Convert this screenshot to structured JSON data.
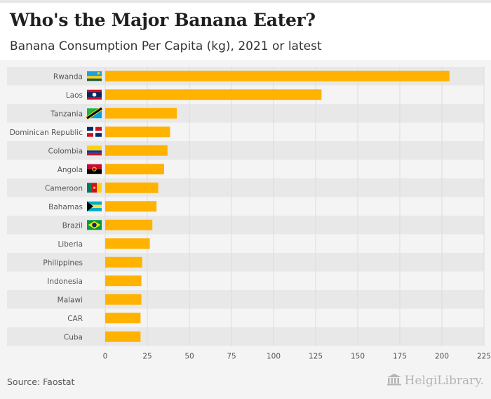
{
  "header": {
    "title": "Who's the Major Banana Eater?",
    "subtitle": "Banana Consumption Per Capita (kg), 2021 or latest"
  },
  "footer": {
    "source": "Source: Faostat",
    "brand": "HelgiLibrary."
  },
  "colors": {
    "bar": "#ffb300",
    "band": "#e8e8e8",
    "grid": "#dcdcdc",
    "label": "#555555"
  },
  "chart_data": {
    "type": "bar",
    "orientation": "horizontal",
    "title": "Who's the Major Banana Eater?",
    "subtitle": "Banana Consumption Per Capita (kg), 2021 or latest",
    "xlabel": "",
    "ylabel": "",
    "xlim": [
      0,
      225
    ],
    "ticks": [
      0,
      25,
      50,
      75,
      100,
      125,
      150,
      175,
      200,
      225
    ],
    "grid": true,
    "categories": [
      "Rwanda",
      "Laos",
      "Tanzania",
      "Dominican Republic",
      "Colombia",
      "Angola",
      "Cameroon",
      "Bahamas",
      "Brazil",
      "Liberia",
      "Philippines",
      "Indonesia",
      "Malawi",
      "CAR",
      "Cuba"
    ],
    "flags": [
      "rwanda",
      "laos",
      "tanzania",
      "dominican-republic",
      "colombia",
      "angola",
      "cameroon",
      "bahamas",
      "brazil",
      "",
      "",
      "",
      "",
      "",
      ""
    ],
    "values": [
      204.5,
      128.5,
      42.5,
      38.5,
      37,
      35,
      31.5,
      30.5,
      28,
      26.5,
      22,
      21.5,
      21.5,
      21,
      21
    ]
  }
}
